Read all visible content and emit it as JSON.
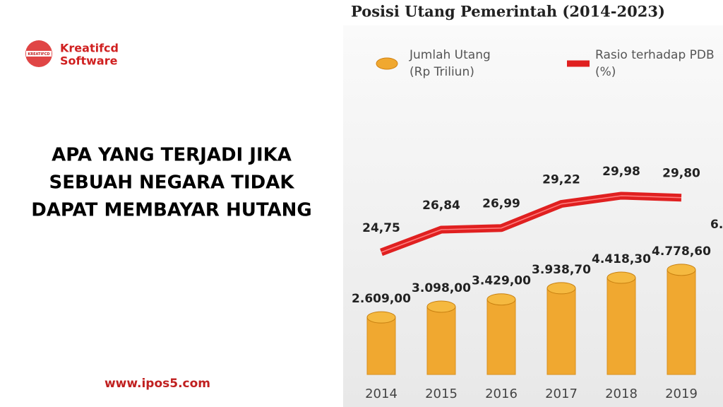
{
  "brand": {
    "logo_text": "KREATIFCD",
    "name_line1": "Kreatifcd",
    "name_line2": "Software"
  },
  "headline": [
    "APA YANG TERJADI JIKA",
    "SEBUAH NEGARA TIDAK",
    "DAPAT MEMBAYAR HUTANG"
  ],
  "website": "www.ipos5.com",
  "chart_data": {
    "type": "bar-line",
    "title": "Posisi Utang Pemerintah (2014-2023)",
    "categories": [
      "2014",
      "2015",
      "2016",
      "2017",
      "2018",
      "2019"
    ],
    "series": [
      {
        "name": "Jumlah Utang",
        "unit_label": "(Rp Triliun)",
        "color": "#f0a830",
        "values": [
          2609.0,
          3098.0,
          3429.0,
          3938.7,
          4418.3,
          4778.6
        ],
        "value_labels": [
          "2.609,00",
          "3.098,00",
          "3.429,00",
          "3.938,70",
          "4.418,30",
          "4.778,60"
        ]
      },
      {
        "name": "Rasio terhadap PDB",
        "unit_label": "(%)",
        "color": "#e02020",
        "values": [
          24.75,
          26.84,
          26.99,
          29.22,
          29.98,
          29.8
        ],
        "value_labels": [
          "24,75",
          "26,84",
          "26,99",
          "29,22",
          "29,98",
          "29,80"
        ]
      }
    ],
    "annotation": "6."
  }
}
